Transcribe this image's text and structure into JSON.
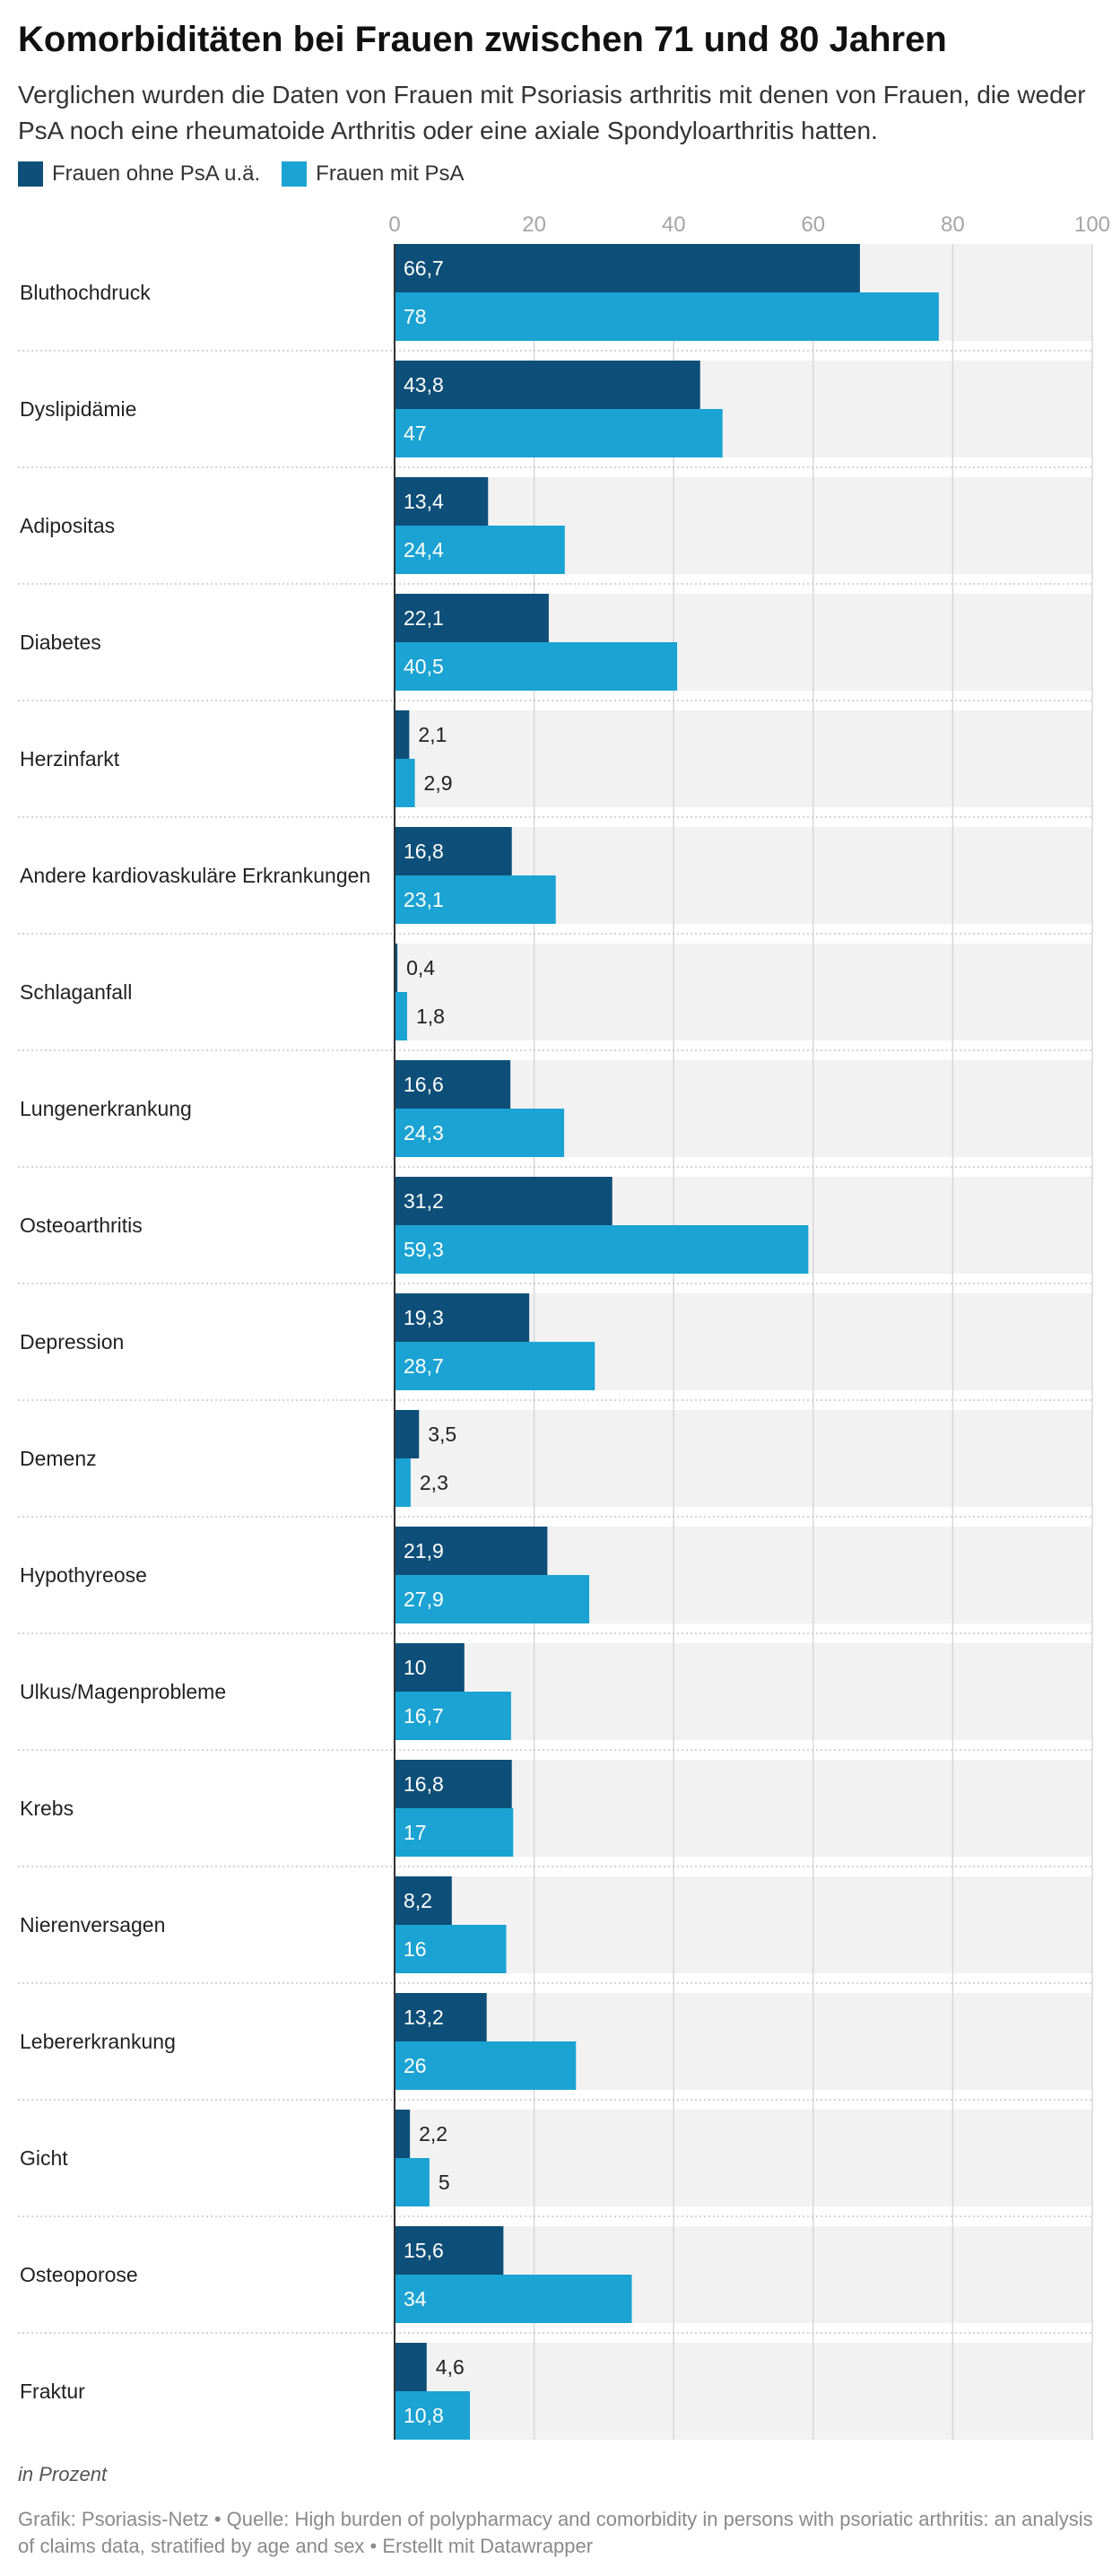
{
  "title": "Komorbiditäten bei Frauen zwischen 71 und 80 Jahren",
  "subtitle": "Verglichen wurden die Daten von Frauen mit Psoriasis arthritis mit denen von Frauen, die weder PsA noch eine rheumatoide Arthritis oder eine axiale Spondyloarthritis hatten.",
  "legend": [
    {
      "label": "Frauen ohne PsA u.ä.",
      "color": "#0e4f79"
    },
    {
      "label": "Frauen mit PsA",
      "color": "#1ba3d3"
    }
  ],
  "notes": "in Prozent",
  "footer": "Grafik: Psoriasis-Netz • Quelle: High burden of polypharmacy and comorbidity in persons with psoriatic arthritis: an analysis of claims data, stratified by age and sex • Erstellt mit Datawrapper",
  "chart_data": {
    "type": "bar",
    "orientation": "horizontal",
    "xlim": [
      0,
      100
    ],
    "ticks": [
      "0",
      "20",
      "40",
      "60",
      "80",
      "100"
    ],
    "tick_values": [
      0,
      20,
      40,
      60,
      80,
      100
    ],
    "grid": true,
    "legend_position": "top-left",
    "categories": [
      "Bluthochdruck",
      "Dyslipidämie",
      "Adipositas",
      "Diabetes",
      "Herzinfarkt",
      "Andere kardiovaskuläre Erkrankungen",
      "Schlaganfall",
      "Lungenerkrankung",
      "Osteoarthritis",
      "Depression",
      "Demenz",
      "Hypothyreose",
      "Ulkus/Magenprobleme",
      "Krebs",
      "Nierenversagen",
      "Lebererkrankung",
      "Gicht",
      "Osteoporose",
      "Fraktur"
    ],
    "series": [
      {
        "name": "Frauen ohne PsA u.ä.",
        "color": "#0e4f79",
        "values": [
          66.7,
          43.8,
          13.4,
          22.1,
          2.1,
          16.8,
          0.4,
          16.6,
          31.2,
          19.3,
          3.5,
          21.9,
          10,
          16.8,
          8.2,
          13.2,
          2.2,
          15.6,
          4.6
        ],
        "labels": [
          "66,7",
          "43,8",
          "13,4",
          "22,1",
          "2,1",
          "16,8",
          "0,4",
          "16,6",
          "31,2",
          "19,3",
          "3,5",
          "21,9",
          "10",
          "16,8",
          "8,2",
          "13,2",
          "2,2",
          "15,6",
          "4,6"
        ]
      },
      {
        "name": "Frauen mit PsA",
        "color": "#1ba3d3",
        "values": [
          78,
          47,
          24.4,
          40.5,
          2.9,
          23.1,
          1.8,
          24.3,
          59.3,
          28.7,
          2.3,
          27.9,
          16.7,
          17,
          16,
          26,
          5,
          34,
          10.8
        ],
        "labels": [
          "78",
          "47",
          "24,4",
          "40,5",
          "2,9",
          "23,1",
          "1,8",
          "24,3",
          "59,3",
          "28,7",
          "2,3",
          "27,9",
          "16,7",
          "17",
          "16",
          "26",
          "5",
          "34",
          "10,8"
        ]
      }
    ]
  }
}
